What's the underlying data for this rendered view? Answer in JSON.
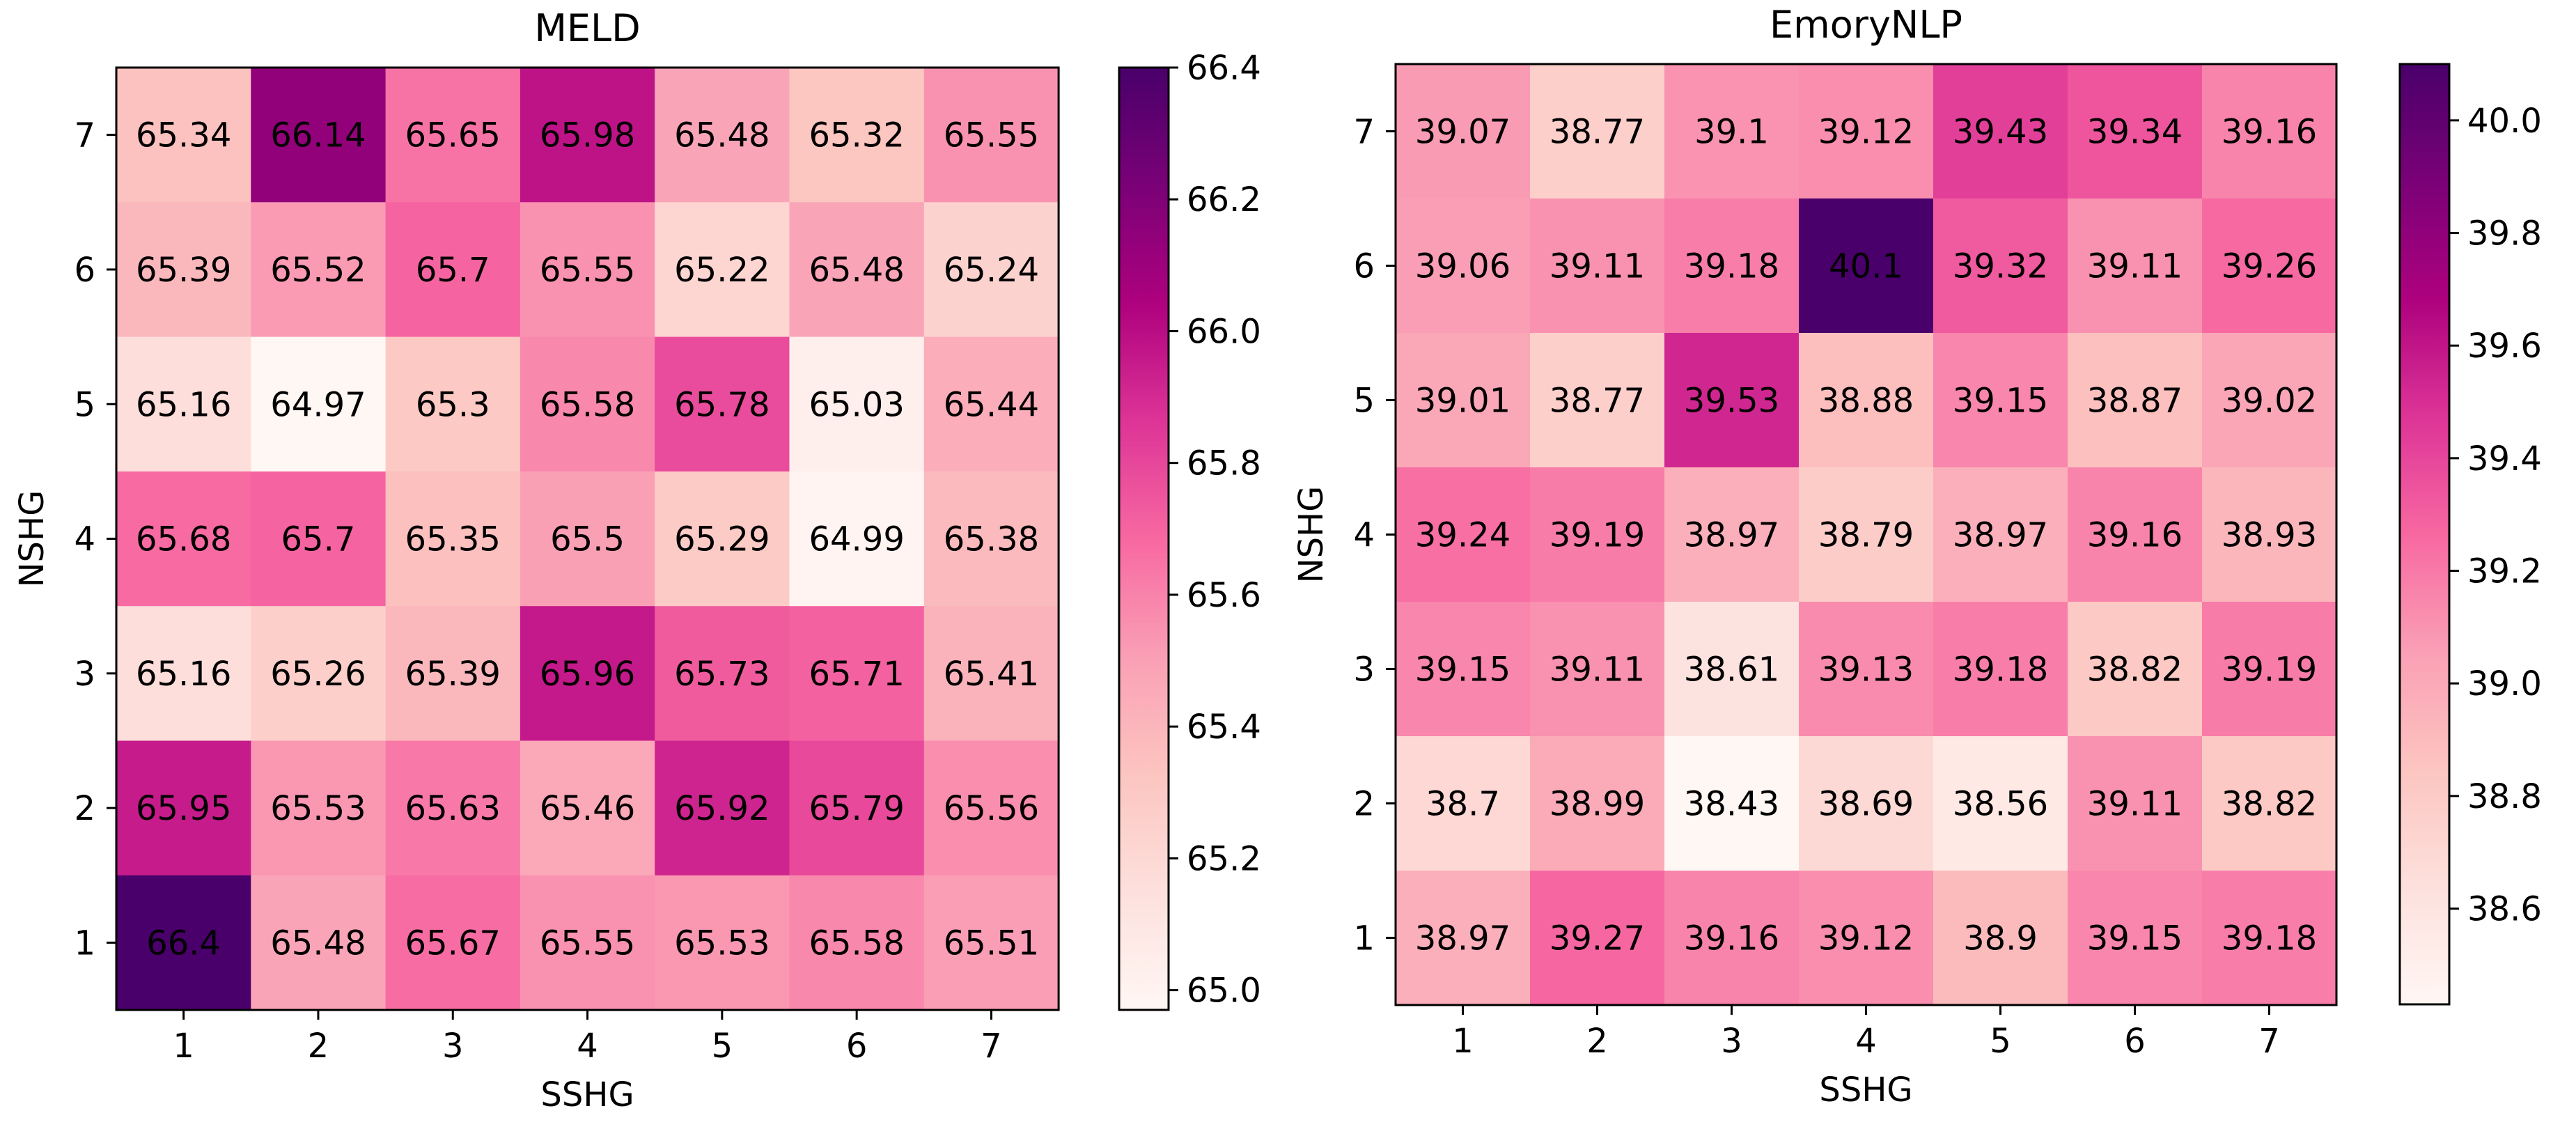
{
  "chart_data": [
    {
      "type": "heatmap",
      "title": "MELD",
      "xlabel": "SSHG",
      "ylabel": "NSHG",
      "x": [
        "1",
        "2",
        "3",
        "4",
        "5",
        "6",
        "7"
      ],
      "y": [
        "7",
        "6",
        "5",
        "4",
        "3",
        "2",
        "1"
      ],
      "values": [
        [
          65.34,
          66.14,
          65.65,
          65.98,
          65.48,
          65.32,
          65.55
        ],
        [
          65.39,
          65.52,
          65.7,
          65.55,
          65.22,
          65.48,
          65.24
        ],
        [
          65.16,
          64.97,
          65.3,
          65.58,
          65.78,
          65.03,
          65.44
        ],
        [
          65.68,
          65.7,
          65.35,
          65.5,
          65.29,
          64.99,
          65.38
        ],
        [
          65.16,
          65.26,
          65.39,
          65.96,
          65.73,
          65.71,
          65.41
        ],
        [
          65.95,
          65.53,
          65.63,
          65.46,
          65.92,
          65.79,
          65.56
        ],
        [
          66.4,
          65.48,
          65.67,
          65.55,
          65.53,
          65.58,
          65.51
        ]
      ],
      "labels": [
        [
          "65.34",
          "66.14",
          "65.65",
          "65.98",
          "65.48",
          "65.32",
          "65.55"
        ],
        [
          "65.39",
          "65.52",
          "65.7",
          "65.55",
          "65.22",
          "65.48",
          "65.24"
        ],
        [
          "65.16",
          "64.97",
          "65.3",
          "65.58",
          "65.78",
          "65.03",
          "65.44"
        ],
        [
          "65.68",
          "65.7",
          "65.35",
          "65.5",
          "65.29",
          "64.99",
          "65.38"
        ],
        [
          "65.16",
          "65.26",
          "65.39",
          "65.96",
          "65.73",
          "65.71",
          "65.41"
        ],
        [
          "65.95",
          "65.53",
          "65.63",
          "65.46",
          "65.92",
          "65.79",
          "65.56"
        ],
        [
          "66.4",
          "65.48",
          "65.67",
          "65.55",
          "65.53",
          "65.58",
          "65.51"
        ]
      ],
      "colorbar": {
        "range": [
          64.97,
          66.4
        ],
        "ticks": [
          65.0,
          65.2,
          65.4,
          65.6,
          65.8,
          66.0,
          66.2,
          66.4
        ],
        "tick_labels": [
          "65.0",
          "65.2",
          "65.4",
          "65.6",
          "65.8",
          "66.0",
          "66.2",
          "66.4"
        ]
      },
      "colormap": "RdPu"
    },
    {
      "type": "heatmap",
      "title": "EmoryNLP",
      "xlabel": "SSHG",
      "ylabel": "NSHG",
      "x": [
        "1",
        "2",
        "3",
        "4",
        "5",
        "6",
        "7"
      ],
      "y": [
        "7",
        "6",
        "5",
        "4",
        "3",
        "2",
        "1"
      ],
      "values": [
        [
          39.07,
          38.77,
          39.1,
          39.12,
          39.43,
          39.34,
          39.16
        ],
        [
          39.06,
          39.11,
          39.18,
          40.1,
          39.32,
          39.11,
          39.26
        ],
        [
          39.01,
          38.77,
          39.53,
          38.88,
          39.15,
          38.87,
          39.02
        ],
        [
          39.24,
          39.19,
          38.97,
          38.79,
          38.97,
          39.16,
          38.93
        ],
        [
          39.15,
          39.11,
          38.61,
          39.13,
          39.18,
          38.82,
          39.19
        ],
        [
          38.7,
          38.99,
          38.43,
          38.69,
          38.56,
          39.11,
          38.82
        ],
        [
          38.97,
          39.27,
          39.16,
          39.12,
          38.9,
          39.15,
          39.18
        ]
      ],
      "labels": [
        [
          "39.07",
          "38.77",
          "39.1",
          "39.12",
          "39.43",
          "39.34",
          "39.16"
        ],
        [
          "39.06",
          "39.11",
          "39.18",
          "40.1",
          "39.32",
          "39.11",
          "39.26"
        ],
        [
          "39.01",
          "38.77",
          "39.53",
          "38.88",
          "39.15",
          "38.87",
          "39.02"
        ],
        [
          "39.24",
          "39.19",
          "38.97",
          "38.79",
          "38.97",
          "39.16",
          "38.93"
        ],
        [
          "39.15",
          "39.11",
          "38.61",
          "39.13",
          "39.18",
          "38.82",
          "39.19"
        ],
        [
          "38.7",
          "38.99",
          "38.43",
          "38.69",
          "38.56",
          "39.11",
          "38.82"
        ],
        [
          "38.97",
          "39.27",
          "39.16",
          "39.12",
          "38.9",
          "39.15",
          "39.18"
        ]
      ],
      "colorbar": {
        "range": [
          38.43,
          40.1
        ],
        "ticks": [
          38.6,
          38.8,
          39.0,
          39.2,
          39.4,
          39.6,
          39.8,
          40.0
        ],
        "tick_labels": [
          "38.6",
          "38.8",
          "39.0",
          "39.2",
          "39.4",
          "39.6",
          "39.8",
          "40.0"
        ]
      },
      "colormap": "RdPu"
    }
  ],
  "colormap_stops": [
    "#fff7f3",
    "#fde0dd",
    "#fcc5c0",
    "#fa9fb5",
    "#f768a1",
    "#dd3497",
    "#ae017e",
    "#7a0177",
    "#49006a"
  ]
}
